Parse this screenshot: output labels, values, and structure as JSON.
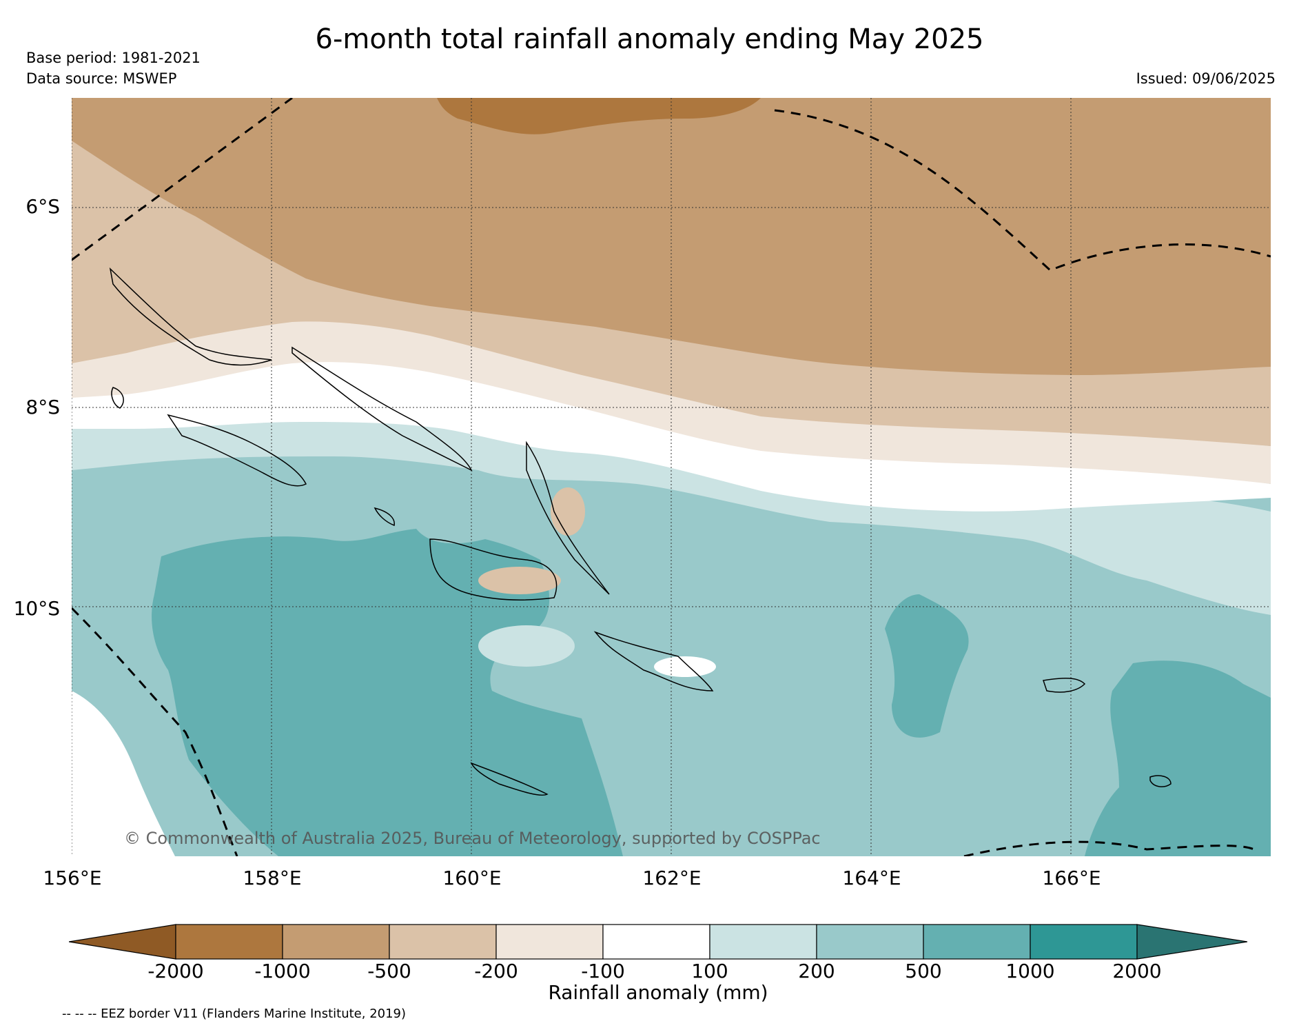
{
  "header": {
    "title": "6-month total rainfall anomaly ending May 2025",
    "base_period": "Base period: 1981-2021",
    "data_source": "Data source: MSWEP",
    "issued": "Issued: 09/06/2025"
  },
  "map": {
    "region": "Solomon Islands",
    "copyright": "© Commonwealth of Australia 2025, Bureau of Meteorology, supported by COSPPac",
    "lat_labels": [
      "6°S",
      "8°S",
      "10°S"
    ],
    "lon_labels": [
      "156°E",
      "158°E",
      "160°E",
      "162°E",
      "164°E",
      "166°E"
    ],
    "lon_range": [
      156,
      168
    ],
    "lat_range": [
      -4.9,
      -12.5
    ],
    "grid": true,
    "eez_border_style": "dashed"
  },
  "legend": {
    "label": "Rainfall anomaly (mm)",
    "ticks": [
      "-2000",
      "-1000",
      "-500",
      "-200",
      "-100",
      "100",
      "200",
      "500",
      "1000",
      "2000"
    ],
    "colors": [
      "#8f5a25",
      "#ad773e",
      "#c49c72",
      "#dbc2a8",
      "#f0e6dc",
      "#ffffff",
      "#cbe3e3",
      "#99c9ca",
      "#64b0b1",
      "#2e9795",
      "#2a7472"
    ],
    "extend": "both",
    "footnote": "-- -- -- EEZ border V11 (Flanders Marine Institute, 2019)"
  }
}
